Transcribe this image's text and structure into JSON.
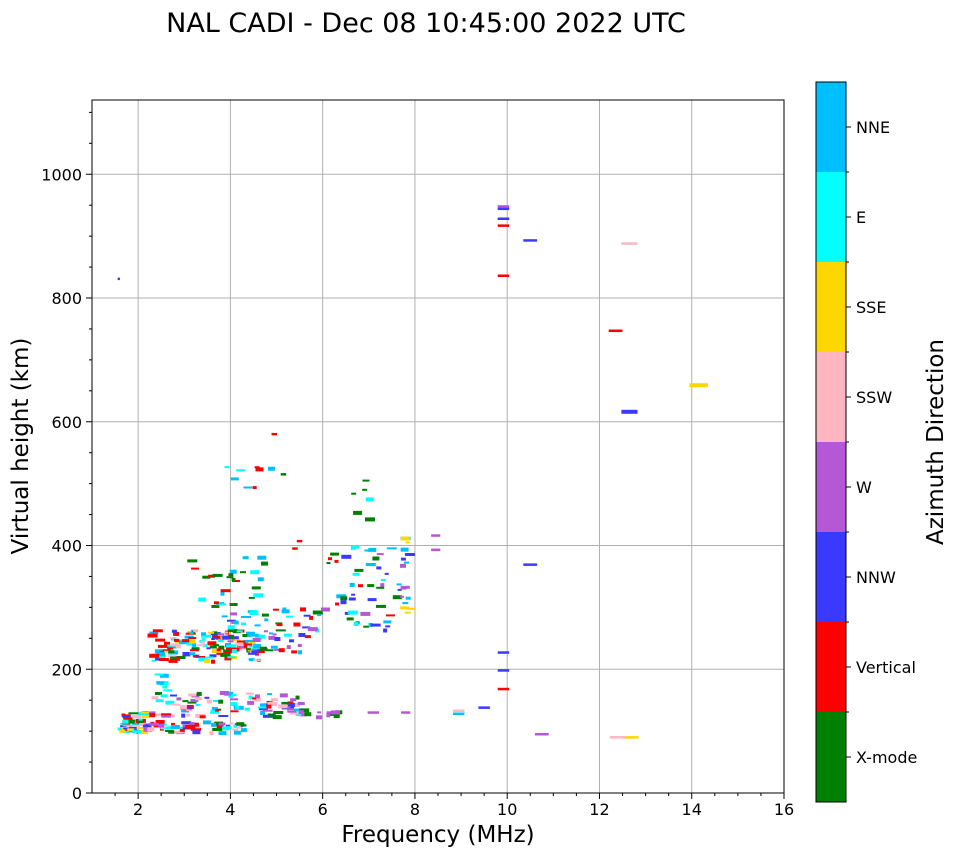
{
  "chart_data": {
    "type": "scatter",
    "title": "NAL CADI - Dec 08 10:45:00 2022 UTC",
    "xlabel": "Frequency (MHz)",
    "ylabel": "Virtual height (km)",
    "xlim": [
      1,
      16
    ],
    "ylim": [
      0,
      1120
    ],
    "xticks": [
      2,
      4,
      6,
      8,
      10,
      12,
      14,
      16
    ],
    "xtick_labels": [
      "2",
      "4",
      "6",
      "8",
      "10",
      "12",
      "14",
      "16"
    ],
    "yticks": [
      0,
      200,
      400,
      600,
      800,
      1000
    ],
    "ytick_labels": [
      "0",
      "200",
      "400",
      "600",
      "800",
      "1000"
    ],
    "grid": true,
    "colorbar": {
      "title": "Azimuth Direction",
      "categories": [
        {
          "label": "X-mode",
          "color": "#008000"
        },
        {
          "label": "Vertical",
          "color": "#ff0000"
        },
        {
          "label": "NNW",
          "color": "#3a3aff"
        },
        {
          "label": "W",
          "color": "#b657d6"
        },
        {
          "label": "SSW",
          "color": "#ffb6c1"
        },
        {
          "label": "SSE",
          "color": "#ffd700"
        },
        {
          "label": "E",
          "color": "#00ffff"
        },
        {
          "label": "NNE",
          "color": "#00bfff"
        }
      ]
    },
    "cluster_seeds": [
      {
        "f": [
          1.55,
          2.1
        ],
        "h": [
          100,
          135
        ],
        "count": 45,
        "cats": [
          "Vertical",
          "SSW",
          "NNW",
          "E",
          "X-mode",
          "SSE",
          "NNE"
        ]
      },
      {
        "f": [
          2.1,
          4.3
        ],
        "h": [
          100,
          118
        ],
        "count": 55,
        "cats": [
          "Vertical",
          "X-mode",
          "SSW",
          "NNE",
          "NNW",
          "E",
          "W"
        ]
      },
      {
        "f": [
          2.2,
          5.5
        ],
        "h": [
          125,
          165
        ],
        "count": 95,
        "cats": [
          "Vertical",
          "NNE",
          "NNW",
          "E",
          "X-mode",
          "SSW",
          "W"
        ]
      },
      {
        "f": [
          2.3,
          2.6
        ],
        "h": [
          165,
          195
        ],
        "count": 8,
        "cats": [
          "NNE",
          "E"
        ]
      },
      {
        "f": [
          2.2,
          4.6
        ],
        "h": [
          215,
          265
        ],
        "count": 140,
        "cats": [
          "Vertical",
          "Vertical",
          "NNE",
          "NNW",
          "E",
          "SSE",
          "SSW",
          "X-mode"
        ]
      },
      {
        "f": [
          3.5,
          6.0
        ],
        "h": [
          230,
          300
        ],
        "count": 65,
        "cats": [
          "Vertical",
          "X-mode",
          "NNW",
          "W",
          "NNE",
          "E"
        ]
      },
      {
        "f": [
          3.0,
          4.7
        ],
        "h": [
          300,
          385
        ],
        "count": 28,
        "cats": [
          "NNE",
          "Vertical",
          "E",
          "X-mode"
        ]
      },
      {
        "f": [
          6.0,
          7.7
        ],
        "h": [
          260,
          400
        ],
        "count": 45,
        "cats": [
          "X-mode",
          "Vertical",
          "W",
          "NNE",
          "E",
          "NNW"
        ]
      },
      {
        "f": [
          7.6,
          7.85
        ],
        "h": [
          285,
          415
        ],
        "count": 18,
        "cats": [
          "NNW",
          "W",
          "SSE",
          "NNE"
        ]
      },
      {
        "f": [
          5.4,
          7.0
        ],
        "h": [
          125,
          135
        ],
        "count": 10,
        "cats": [
          "W",
          "X-mode"
        ]
      },
      {
        "f": [
          3.8,
          4.9
        ],
        "h": [
          475,
          540
        ],
        "count": 8,
        "cats": [
          "Vertical",
          "NNE",
          "E"
        ]
      },
      {
        "f": [
          6.6,
          7.1
        ],
        "h": [
          430,
          530
        ],
        "count": 7,
        "cats": [
          "X-mode",
          "NNE",
          "E"
        ]
      }
    ],
    "traces": [
      {
        "f": 1.58,
        "h": 831,
        "df": 0.05,
        "cat": "NNW"
      },
      {
        "f": 4.95,
        "h": 580,
        "df": 0.12,
        "cat": "Vertical"
      },
      {
        "f": 5.15,
        "h": 515,
        "df": 0.12,
        "cat": "X-mode"
      },
      {
        "f": 5.5,
        "h": 407,
        "df": 0.12,
        "cat": "Vertical"
      },
      {
        "f": 5.4,
        "h": 395,
        "df": 0.12,
        "cat": "Vertical"
      },
      {
        "f": 7.1,
        "h": 130,
        "df": 0.25,
        "cat": "W"
      },
      {
        "f": 7.8,
        "h": 130,
        "df": 0.2,
        "cat": "W"
      },
      {
        "f": 8.45,
        "h": 416,
        "df": 0.2,
        "cat": "W"
      },
      {
        "f": 8.45,
        "h": 393,
        "df": 0.2,
        "cat": "W"
      },
      {
        "f": 8.95,
        "h": 128,
        "df": 0.25,
        "cat": "NNE"
      },
      {
        "f": 8.95,
        "h": 133,
        "df": 0.25,
        "cat": "SSW"
      },
      {
        "f": 9.5,
        "h": 138,
        "df": 0.25,
        "cat": "NNW"
      },
      {
        "f": 9.92,
        "h": 948,
        "df": 0.25,
        "cat": "W"
      },
      {
        "f": 9.92,
        "h": 944,
        "df": 0.25,
        "cat": "NNW"
      },
      {
        "f": 9.92,
        "h": 928,
        "df": 0.25,
        "cat": "NNW"
      },
      {
        "f": 9.92,
        "h": 917,
        "df": 0.25,
        "cat": "Vertical"
      },
      {
        "f": 9.92,
        "h": 836,
        "df": 0.25,
        "cat": "Vertical"
      },
      {
        "f": 9.92,
        "h": 227,
        "df": 0.25,
        "cat": "NNW"
      },
      {
        "f": 9.92,
        "h": 198,
        "df": 0.25,
        "cat": "NNW"
      },
      {
        "f": 9.92,
        "h": 168,
        "df": 0.25,
        "cat": "Vertical"
      },
      {
        "f": 10.5,
        "h": 893,
        "df": 0.3,
        "cat": "NNW"
      },
      {
        "f": 10.5,
        "h": 369,
        "df": 0.3,
        "cat": "NNW"
      },
      {
        "f": 10.75,
        "h": 95,
        "df": 0.3,
        "cat": "W"
      },
      {
        "f": 12.35,
        "h": 747,
        "df": 0.3,
        "cat": "Vertical"
      },
      {
        "f": 12.65,
        "h": 888,
        "df": 0.35,
        "cat": "SSW"
      },
      {
        "f": 12.65,
        "h": 616,
        "df": 0.35,
        "cat": "NNW",
        "tall": true
      },
      {
        "f": 12.4,
        "h": 90,
        "df": 0.35,
        "cat": "SSW"
      },
      {
        "f": 12.7,
        "h": 90,
        "df": 0.3,
        "cat": "SSE"
      },
      {
        "f": 14.15,
        "h": 659,
        "df": 0.4,
        "cat": "SSE",
        "tall": true
      }
    ]
  }
}
